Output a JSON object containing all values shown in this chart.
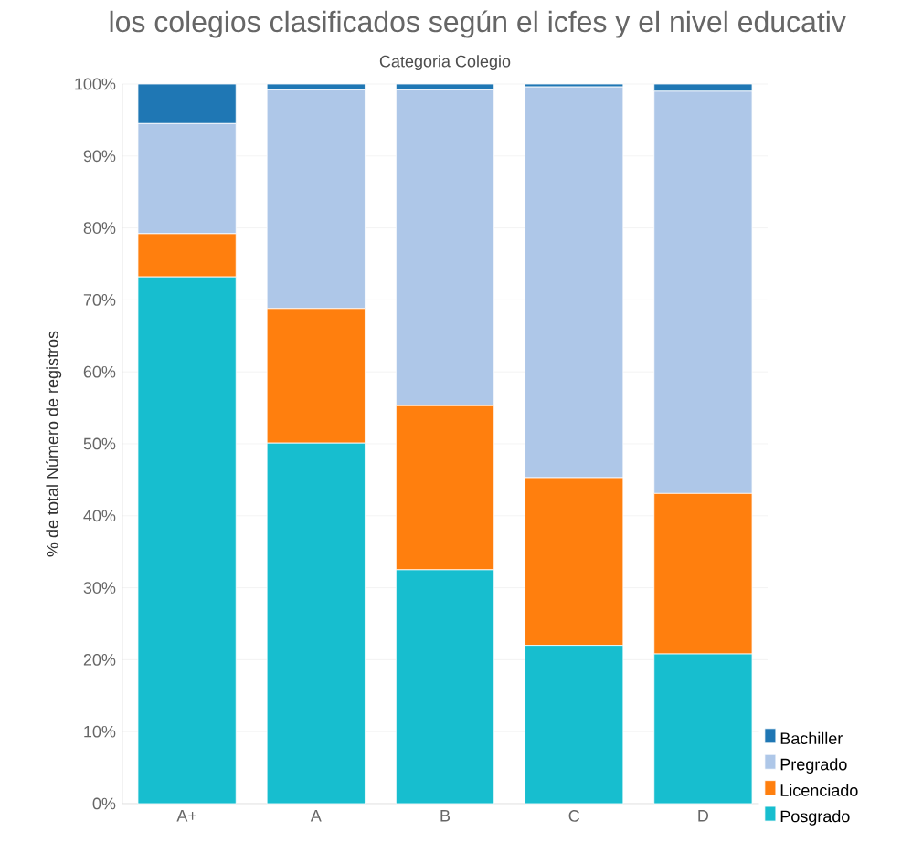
{
  "chart_data": {
    "type": "bar",
    "stacked": true,
    "title": "los colegios clasificados según el icfes y el nivel educativ",
    "xlabel": "Categoria Colegio",
    "ylabel": "% de total Número de registros",
    "categories": [
      "A+",
      "A",
      "B",
      "C",
      "D"
    ],
    "series": [
      {
        "name": "Posgrado",
        "color": "#17becf",
        "values": [
          73.2,
          50.1,
          32.5,
          22.0,
          20.8
        ]
      },
      {
        "name": "Licenciado",
        "color": "#ff7f0e",
        "values": [
          6.0,
          18.7,
          22.8,
          23.3,
          22.3
        ]
      },
      {
        "name": "Pregrado",
        "color": "#aec7e8",
        "values": [
          15.3,
          30.4,
          43.9,
          54.3,
          55.9
        ]
      },
      {
        "name": "Bachiller",
        "color": "#1f77b4",
        "values": [
          5.5,
          0.8,
          0.8,
          0.4,
          1.0
        ]
      }
    ],
    "ylim": [
      0,
      100
    ],
    "yticks": [
      {
        "value": 0,
        "label": "0%"
      },
      {
        "value": 10,
        "label": "10%"
      },
      {
        "value": 20,
        "label": "20%"
      },
      {
        "value": 30,
        "label": "30%"
      },
      {
        "value": 40,
        "label": "40%"
      },
      {
        "value": 50,
        "label": "50%"
      },
      {
        "value": 60,
        "label": "60%"
      },
      {
        "value": 70,
        "label": "70%"
      },
      {
        "value": 80,
        "label": "80%"
      },
      {
        "value": 90,
        "label": "90%"
      },
      {
        "value": 100,
        "label": "100%"
      }
    ],
    "grid": "y",
    "legend": "bottom right"
  }
}
